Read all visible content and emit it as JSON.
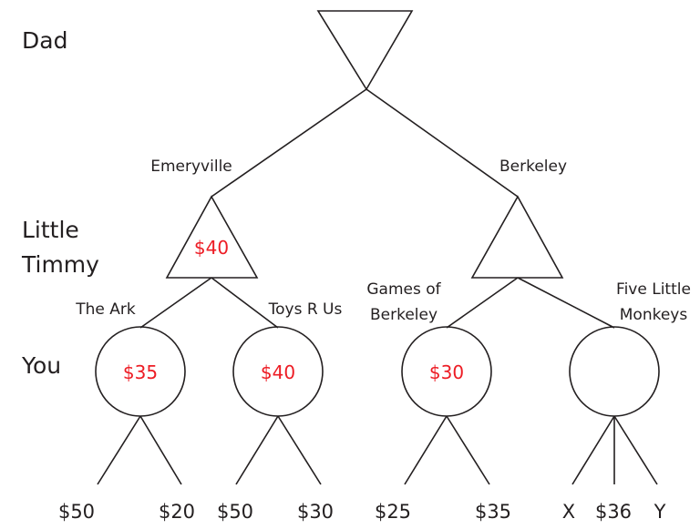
{
  "colors": {
    "ink": "#231f20",
    "value": "#ed1c24"
  },
  "row_labels": {
    "dad": "Dad",
    "little_timmy": [
      "Little",
      "Timmy"
    ],
    "you": "You"
  },
  "edge_labels": {
    "emeryville": "Emeryville",
    "berkeley": "Berkeley",
    "the_ark": "The Ark",
    "toys_r_us": "Toys R Us",
    "games_of_berkeley": [
      "Games of",
      "Berkeley"
    ],
    "five_little_monkeys": [
      "Five Little",
      "Monkeys"
    ]
  },
  "node_values": {
    "timmy_emeryville": "$40",
    "you_the_ark": "$35",
    "you_toys_r_us": "$40",
    "you_games_of_berkeley": "$30"
  },
  "leaf_values": {
    "the_ark": [
      "$50",
      "$20"
    ],
    "toys_r_us": [
      "$50",
      "$30"
    ],
    "games_of_berkeley": [
      "$25",
      "$35"
    ],
    "five_little_monkeys": [
      "X",
      "$36",
      "Y"
    ]
  }
}
